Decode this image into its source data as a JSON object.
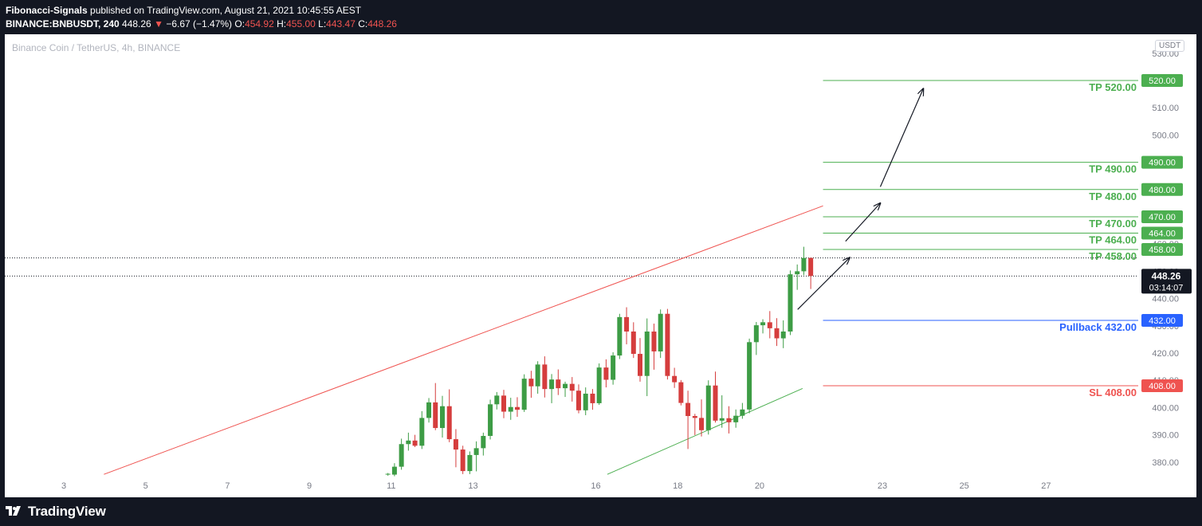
{
  "header": {
    "author": "Fibonacci-Signals",
    "published": "published on TradingView.com, August 21, 2021 10:45:55 AEST",
    "symbol": "BINANCE:BNBUSDT, 240",
    "last": "448.26",
    "change": "−6.67 (−1.47%)",
    "o_label": "O:",
    "o": "454.92",
    "h_label": "H:",
    "h": "455.00",
    "l_label": "L:",
    "l": "443.47",
    "c_label": "C:",
    "c": "448.26"
  },
  "footer": {
    "brand": "TradingView"
  },
  "colors": {
    "up": "#3d9c45",
    "down": "#d53d3d",
    "tp_line": "#4caf50",
    "sl_line": "#ef5350",
    "pullback": "#2962ff",
    "background": "#131722"
  },
  "chart_data": {
    "type": "candlestick",
    "title": "Binance Coin / TetherUS, 4h, BINANCE",
    "currency": "USDT",
    "y_ticks": [
      "530.00",
      "520.00",
      "510.00",
      "500.00",
      "490.00",
      "480.00",
      "470.00",
      "460.00",
      "450.00",
      "440.00",
      "430.00",
      "420.00",
      "410.00",
      "400.00",
      "390.00",
      "380.00"
    ],
    "x_ticks": [
      {
        "label": "3",
        "day": 3
      },
      {
        "label": "5",
        "day": 5
      },
      {
        "label": "7",
        "day": 7
      },
      {
        "label": "9",
        "day": 9
      },
      {
        "label": "11",
        "day": 11
      },
      {
        "label": "13",
        "day": 13
      },
      {
        "label": "16",
        "day": 16
      },
      {
        "label": "18",
        "day": 18
      },
      {
        "label": "20",
        "day": 20
      },
      {
        "label": "23",
        "day": 23
      },
      {
        "label": "25",
        "day": 25
      },
      {
        "label": "27",
        "day": 27
      }
    ],
    "last_price": {
      "value": 448.26,
      "label": "448.26",
      "countdown": "03:14:07"
    },
    "prev_close_line": 454.9,
    "levels": [
      {
        "name": "TP 520.00",
        "price": 520,
        "axis_label": "520.00",
        "kind": "tp"
      },
      {
        "name": "TP 490.00",
        "price": 490,
        "axis_label": "490.00",
        "kind": "tp"
      },
      {
        "name": "TP 480.00",
        "price": 480,
        "axis_label": "480.00",
        "kind": "tp"
      },
      {
        "name": "TP 470.00",
        "price": 470,
        "axis_label": "470.00",
        "kind": "tp"
      },
      {
        "name": "TP 464.00",
        "price": 464,
        "axis_label": "464.00",
        "kind": "tp"
      },
      {
        "name": "TP 458.00",
        "price": 458,
        "axis_label": "458.00",
        "kind": "tp"
      },
      {
        "name": "Pullback 432.00",
        "price": 432,
        "axis_label": "432.00",
        "kind": "pullback"
      },
      {
        "name": "SL 408.00",
        "price": 408,
        "axis_label": "408.00",
        "kind": "sl"
      }
    ],
    "trendlines": [
      {
        "kind": "resistance",
        "from": {
          "day": 3.98,
          "price": 375.5
        },
        "to": {
          "day": 21.55,
          "price": 474
        }
      },
      {
        "kind": "support",
        "from": {
          "day": 16.28,
          "price": 375.5
        },
        "to": {
          "day": 21.05,
          "price": 407
        }
      }
    ],
    "arrows": [
      {
        "from": {
          "day": 20.93,
          "price": 436
        },
        "to": {
          "day": 22.2,
          "price": 455
        }
      },
      {
        "from": {
          "day": 22.1,
          "price": 461
        },
        "to": {
          "day": 22.95,
          "price": 475
        }
      },
      {
        "from": {
          "day": 22.95,
          "price": 481
        },
        "to": {
          "day": 24.0,
          "price": 517
        }
      }
    ],
    "candles": [
      {
        "day": 10.92,
        "o": 375.4,
        "h": 376,
        "l": 375,
        "c": 375.7
      },
      {
        "day": 11.08,
        "o": 375.4,
        "h": 379.6,
        "l": 374.8,
        "c": 378.3
      },
      {
        "day": 11.25,
        "o": 378.3,
        "h": 388.6,
        "l": 377.2,
        "c": 386.6
      },
      {
        "day": 11.42,
        "o": 386.6,
        "h": 390.8,
        "l": 384.2,
        "c": 387.9
      },
      {
        "day": 11.58,
        "o": 387.9,
        "h": 390,
        "l": 385.5,
        "c": 386
      },
      {
        "day": 11.75,
        "o": 386,
        "h": 398.7,
        "l": 384.8,
        "c": 396.2
      },
      {
        "day": 11.92,
        "o": 396.2,
        "h": 403.5,
        "l": 394.5,
        "c": 401.9
      },
      {
        "day": 12.08,
        "o": 401.9,
        "h": 409,
        "l": 391.7,
        "c": 392.5
      },
      {
        "day": 12.25,
        "o": 392.5,
        "h": 404.3,
        "l": 389,
        "c": 400.5
      },
      {
        "day": 12.42,
        "o": 400.5,
        "h": 406.7,
        "l": 387.3,
        "c": 388.4
      },
      {
        "day": 12.58,
        "o": 388.4,
        "h": 392.1,
        "l": 378.1,
        "c": 384.6
      },
      {
        "day": 12.75,
        "o": 384.6,
        "h": 386,
        "l": 375.6,
        "c": 376.7
      },
      {
        "day": 12.92,
        "o": 376.7,
        "h": 383.9,
        "l": 375.6,
        "c": 382.6
      },
      {
        "day": 13.08,
        "o": 382.6,
        "h": 387.6,
        "l": 376.6,
        "c": 385.1
      },
      {
        "day": 13.25,
        "o": 385.1,
        "h": 390.8,
        "l": 382.4,
        "c": 389.6
      },
      {
        "day": 13.42,
        "o": 389.6,
        "h": 402.9,
        "l": 388.3,
        "c": 401.2
      },
      {
        "day": 13.58,
        "o": 401.2,
        "h": 405.7,
        "l": 399.3,
        "c": 404.4
      },
      {
        "day": 13.75,
        "o": 404.4,
        "h": 406.5,
        "l": 396.1,
        "c": 398.5
      },
      {
        "day": 13.92,
        "o": 398.5,
        "h": 403.6,
        "l": 395.5,
        "c": 400.2
      },
      {
        "day": 14.08,
        "o": 400.2,
        "h": 403.8,
        "l": 396.6,
        "c": 399.2
      },
      {
        "day": 14.25,
        "o": 399.2,
        "h": 412.2,
        "l": 398.4,
        "c": 410.6
      },
      {
        "day": 14.42,
        "o": 410.6,
        "h": 413.5,
        "l": 403.6,
        "c": 407.8
      },
      {
        "day": 14.58,
        "o": 407.8,
        "h": 417,
        "l": 405.1,
        "c": 415.8
      },
      {
        "day": 14.75,
        "o": 415.8,
        "h": 418.8,
        "l": 403.7,
        "c": 406.8
      },
      {
        "day": 14.92,
        "o": 406.8,
        "h": 412.3,
        "l": 401.6,
        "c": 410.3
      },
      {
        "day": 15.08,
        "o": 410.3,
        "h": 414,
        "l": 404.6,
        "c": 407.1
      },
      {
        "day": 15.25,
        "o": 407.1,
        "h": 409.5,
        "l": 403.9,
        "c": 408.7
      },
      {
        "day": 15.42,
        "o": 408.7,
        "h": 411.2,
        "l": 402.2,
        "c": 406.2
      },
      {
        "day": 15.58,
        "o": 406.2,
        "h": 408.5,
        "l": 397.9,
        "c": 399
      },
      {
        "day": 15.75,
        "o": 399,
        "h": 407.4,
        "l": 397.2,
        "c": 405.1
      },
      {
        "day": 15.92,
        "o": 405.1,
        "h": 406.8,
        "l": 399.2,
        "c": 401.6
      },
      {
        "day": 16.08,
        "o": 401.6,
        "h": 416.2,
        "l": 401,
        "c": 414.7
      },
      {
        "day": 16.25,
        "o": 414.7,
        "h": 417.7,
        "l": 407.4,
        "c": 410.2
      },
      {
        "day": 16.42,
        "o": 410.2,
        "h": 420.3,
        "l": 408.4,
        "c": 419.1
      },
      {
        "day": 16.58,
        "o": 419.1,
        "h": 434.4,
        "l": 417.8,
        "c": 433.2
      },
      {
        "day": 16.75,
        "o": 433.2,
        "h": 436.8,
        "l": 423.2,
        "c": 427.9
      },
      {
        "day": 16.92,
        "o": 427.9,
        "h": 431.3,
        "l": 418.2,
        "c": 419.7
      },
      {
        "day": 17.08,
        "o": 419.7,
        "h": 425.5,
        "l": 409.5,
        "c": 411.6
      },
      {
        "day": 17.25,
        "o": 411.6,
        "h": 432.7,
        "l": 404.2,
        "c": 427.9
      },
      {
        "day": 17.42,
        "o": 427.9,
        "h": 430.8,
        "l": 413.9,
        "c": 420.6
      },
      {
        "day": 17.58,
        "o": 420.6,
        "h": 436,
        "l": 418.2,
        "c": 434.4
      },
      {
        "day": 17.75,
        "o": 434.4,
        "h": 436.2,
        "l": 410.3,
        "c": 411.6
      },
      {
        "day": 17.92,
        "o": 411.6,
        "h": 414.6,
        "l": 407.2,
        "c": 409.3
      },
      {
        "day": 18.08,
        "o": 409.3,
        "h": 410.1,
        "l": 400.8,
        "c": 401.7
      },
      {
        "day": 18.25,
        "o": 401.7,
        "h": 406.2,
        "l": 384.8,
        "c": 396.9
      },
      {
        "day": 18.42,
        "o": 396.9,
        "h": 397.7,
        "l": 389.9,
        "c": 396.2
      },
      {
        "day": 18.58,
        "o": 396.2,
        "h": 403,
        "l": 389.4,
        "c": 391.7
      },
      {
        "day": 18.75,
        "o": 391.7,
        "h": 410,
        "l": 390.1,
        "c": 408.1
      },
      {
        "day": 18.92,
        "o": 408.1,
        "h": 413.2,
        "l": 394.5,
        "c": 395.2
      },
      {
        "day": 19.08,
        "o": 395.2,
        "h": 404.5,
        "l": 392.6,
        "c": 396.1
      },
      {
        "day": 19.25,
        "o": 396.1,
        "h": 400.5,
        "l": 390.5,
        "c": 394.6
      },
      {
        "day": 19.42,
        "o": 394.6,
        "h": 399.3,
        "l": 392.6,
        "c": 397
      },
      {
        "day": 19.58,
        "o": 397,
        "h": 401.7,
        "l": 395.9,
        "c": 399.3
      },
      {
        "day": 19.75,
        "o": 399.3,
        "h": 425.3,
        "l": 397.9,
        "c": 424
      },
      {
        "day": 19.92,
        "o": 424,
        "h": 431.4,
        "l": 419.3,
        "c": 430.2
      },
      {
        "day": 20.08,
        "o": 430.2,
        "h": 432.4,
        "l": 427.2,
        "c": 431.3
      },
      {
        "day": 20.25,
        "o": 431.3,
        "h": 435.4,
        "l": 425.4,
        "c": 429.1
      },
      {
        "day": 20.42,
        "o": 429.1,
        "h": 432.8,
        "l": 422.6,
        "c": 425.4
      },
      {
        "day": 20.58,
        "o": 425.4,
        "h": 432,
        "l": 421.8,
        "c": 427.9
      },
      {
        "day": 20.75,
        "o": 427.9,
        "h": 450.3,
        "l": 426.6,
        "c": 448.9
      },
      {
        "day": 20.92,
        "o": 448.9,
        "h": 452.5,
        "l": 443.2,
        "c": 450
      },
      {
        "day": 21.08,
        "o": 450,
        "h": 459,
        "l": 448.6,
        "c": 454.9
      },
      {
        "day": 21.25,
        "o": 454.9,
        "h": 455,
        "l": 443.5,
        "c": 448.3
      }
    ]
  }
}
